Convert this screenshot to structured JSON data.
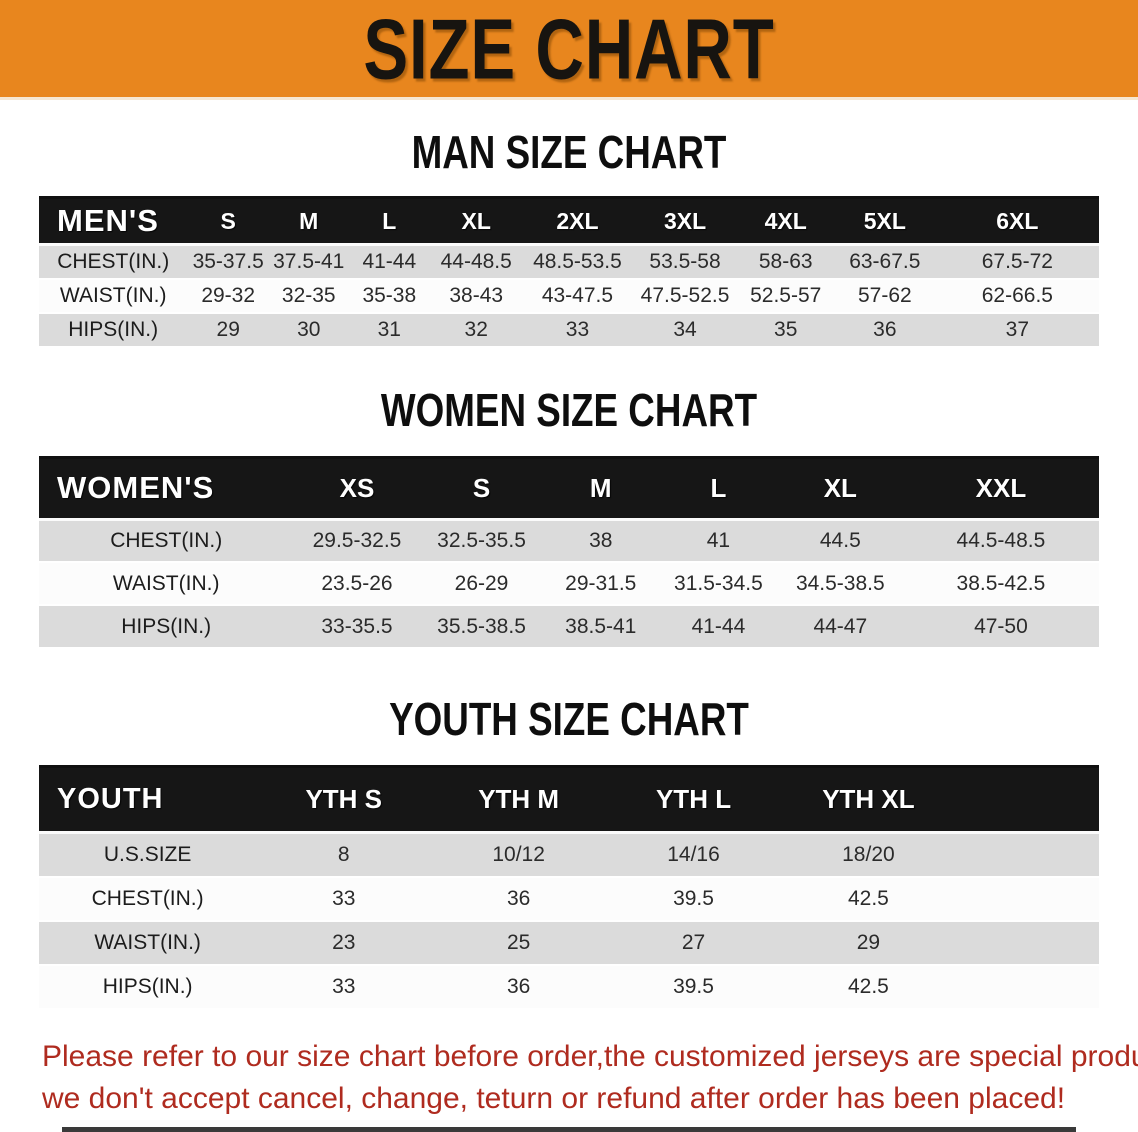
{
  "banner": {
    "title": "SIZE CHART",
    "bg_color": "#E8861E"
  },
  "colors": {
    "header_bg": "#161616",
    "row_alt": "#DBDBDB",
    "row_base": "#FCFCFC",
    "note_color": "#AF2B1F"
  },
  "men": {
    "heading": "MAN SIZE CHART",
    "table": {
      "header_label": "MEN'S",
      "columns": [
        "S",
        "M",
        "L",
        "XL",
        "2XL",
        "3XL",
        "4XL",
        "5XL",
        "6XL"
      ],
      "rows": [
        {
          "label": "CHEST(IN.)",
          "values": [
            "35-37.5",
            "37.5-41",
            "41-44",
            "44-48.5",
            "48.5-53.5",
            "53.5-58",
            "58-63",
            "63-67.5",
            "67.5-72"
          ]
        },
        {
          "label": "WAIST(IN.)",
          "values": [
            "29-32",
            "32-35",
            "35-38",
            "38-43",
            "43-47.5",
            "47.5-52.5",
            "52.5-57",
            "57-62",
            "62-66.5"
          ]
        },
        {
          "label": "HIPS(IN.)",
          "values": [
            "29",
            "30",
            "31",
            "32",
            "33",
            "34",
            "35",
            "36",
            "37"
          ]
        }
      ]
    }
  },
  "women": {
    "heading": "WOMEN SIZE CHART",
    "table": {
      "header_label": "WOMEN'S",
      "columns": [
        "XS",
        "S",
        "M",
        "L",
        "XL",
        "XXL"
      ],
      "rows": [
        {
          "label": "CHEST(IN.)",
          "values": [
            "29.5-32.5",
            "32.5-35.5",
            "38",
            "41",
            "44.5",
            "44.5-48.5"
          ]
        },
        {
          "label": "WAIST(IN.)",
          "values": [
            "23.5-26",
            "26-29",
            "29-31.5",
            "31.5-34.5",
            "34.5-38.5",
            "38.5-42.5"
          ]
        },
        {
          "label": "HIPS(IN.)",
          "values": [
            "33-35.5",
            "35.5-38.5",
            "38.5-41",
            "41-44",
            "44-47",
            "47-50"
          ]
        }
      ]
    }
  },
  "youth": {
    "heading": "YOUTH SIZE CHART",
    "table": {
      "header_label": "YOUTH",
      "columns": [
        "YTH S",
        "YTH M",
        "YTH L",
        "YTH XL"
      ],
      "rows": [
        {
          "label": "U.S.SIZE",
          "values": [
            "8",
            "10/12",
            "14/16",
            "18/20"
          ]
        },
        {
          "label": "CHEST(IN.)",
          "values": [
            "33",
            "36",
            "39.5",
            "42.5"
          ]
        },
        {
          "label": "WAIST(IN.)",
          "values": [
            "23",
            "25",
            "27",
            "29"
          ]
        },
        {
          "label": "HIPS(IN.)",
          "values": [
            "33",
            "36",
            "39.5",
            "42.5"
          ]
        }
      ]
    }
  },
  "note": {
    "line1": "Please refer to our size chart before order,the customized jerseys are special products,",
    "line2": "we don't accept cancel, change, teturn or refund after order has been placed!"
  }
}
